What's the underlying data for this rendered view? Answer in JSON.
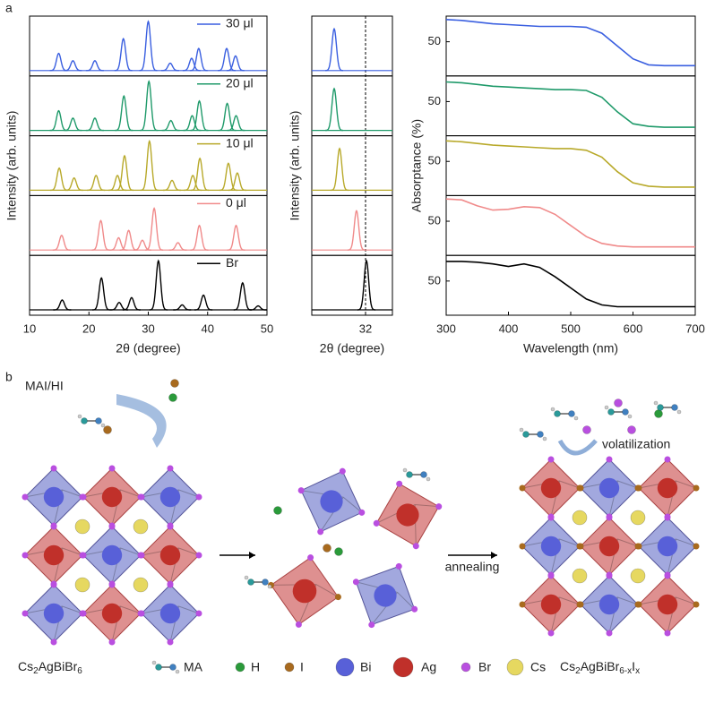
{
  "panel_labels": [
    "a",
    "b"
  ],
  "chart_data": [
    {
      "type": "xrd",
      "ylabel": "Intensity (arb. units)",
      "xlabel": "2θ (degree)",
      "xlim": [
        10,
        50
      ],
      "xticks": [
        10,
        20,
        30,
        40,
        50
      ],
      "series": [
        {
          "name": "30 μl",
          "color": "#3a5fe0",
          "x": [
            14.9,
            17.3,
            21.0,
            25.8,
            30.0,
            33.7,
            37.3,
            38.5,
            43.2,
            44.7
          ],
          "values": [
            0.35,
            0.2,
            0.2,
            0.65,
            1.0,
            0.15,
            0.25,
            0.45,
            0.45,
            0.3
          ]
        },
        {
          "name": "20 μl",
          "color": "#1f9a6a",
          "x": [
            14.9,
            17.3,
            21.0,
            25.9,
            30.1,
            33.8,
            37.4,
            38.6,
            43.3,
            44.8
          ],
          "values": [
            0.4,
            0.25,
            0.25,
            0.7,
            1.0,
            0.2,
            0.3,
            0.6,
            0.55,
            0.3
          ]
        },
        {
          "name": "10 μl",
          "color": "#b8a92a",
          "x": [
            15.0,
            17.5,
            21.2,
            24.8,
            26.0,
            30.2,
            34.0,
            37.5,
            38.7,
            43.5,
            45.0
          ],
          "values": [
            0.45,
            0.25,
            0.3,
            0.3,
            0.7,
            1.0,
            0.2,
            0.3,
            0.65,
            0.55,
            0.35
          ]
        },
        {
          "name": "0 μl",
          "color": "#f08a8a",
          "x": [
            15.4,
            22.0,
            25.0,
            26.7,
            29.0,
            31.0,
            35.0,
            38.6,
            44.8
          ],
          "values": [
            0.3,
            0.6,
            0.25,
            0.4,
            0.2,
            0.85,
            0.15,
            0.5,
            0.5
          ]
        },
        {
          "name": "Br",
          "color": "#000000",
          "x": [
            15.5,
            22.1,
            25.1,
            27.2,
            31.7,
            35.7,
            39.3,
            45.9,
            48.5
          ],
          "values": [
            0.2,
            0.65,
            0.15,
            0.25,
            1.0,
            0.1,
            0.3,
            0.55,
            0.08
          ]
        }
      ]
    },
    {
      "type": "xrd",
      "ylabel": "Intensity (arb. units)",
      "xlabel": "2θ (degree)",
      "xlim": [
        29.5,
        33.25
      ],
      "xticks": [
        32
      ],
      "vline": 32,
      "series": [
        {
          "color": "#3a5fe0",
          "x": [
            30.54
          ],
          "values": [
            0.85
          ]
        },
        {
          "color": "#1f9a6a",
          "x": [
            30.54
          ],
          "values": [
            0.85
          ]
        },
        {
          "color": "#b8a92a",
          "x": [
            30.79
          ],
          "values": [
            0.85
          ]
        },
        {
          "color": "#f08a8a",
          "x": [
            31.58
          ],
          "values": [
            0.8
          ]
        },
        {
          "color": "#000000",
          "x": [
            32.04
          ],
          "values": [
            1.0
          ]
        }
      ]
    },
    {
      "type": "line",
      "ylabel": "Absorptance (%)",
      "xlabel": "Wavelength (nm)",
      "xlim": [
        300,
        700
      ],
      "xticks": [
        300,
        400,
        500,
        600,
        700
      ],
      "ylim": [
        10,
        80
      ],
      "yticks": [
        50
      ],
      "x": [
        300,
        325,
        350,
        375,
        400,
        425,
        450,
        475,
        500,
        525,
        550,
        575,
        600,
        625,
        650,
        675,
        700
      ],
      "series": [
        {
          "color": "#3a5fe0",
          "values": [
            76,
            75,
            73,
            71,
            70,
            69,
            68,
            68,
            68,
            67,
            60,
            45,
            30,
            23,
            22,
            22,
            22
          ]
        },
        {
          "color": "#1f9a6a",
          "values": [
            73,
            72,
            70,
            68,
            67,
            66,
            65,
            64,
            64,
            63,
            55,
            38,
            24,
            21,
            20,
            20,
            20
          ]
        },
        {
          "color": "#b8a92a",
          "values": [
            74,
            73,
            71,
            69,
            68,
            67,
            66,
            65,
            65,
            63,
            55,
            38,
            25,
            21,
            20,
            20,
            20
          ]
        },
        {
          "color": "#f08a8a",
          "values": [
            76,
            75,
            68,
            63,
            64,
            67,
            66,
            58,
            45,
            32,
            24,
            21,
            20,
            20,
            20,
            20,
            20
          ]
        },
        {
          "color": "#000000",
          "values": [
            73,
            73,
            72,
            70,
            67,
            70,
            66,
            55,
            42,
            29,
            22,
            20,
            20,
            20,
            20,
            20,
            20
          ]
        }
      ]
    }
  ],
  "diagram": {
    "reagent": "MAI/HI",
    "process": "volatilization",
    "step": "annealing",
    "start_formula": [
      "Cs",
      "2",
      "AgBiBr",
      "6"
    ],
    "end_formula": [
      "Cs",
      "2",
      "AgBiBr",
      "6-x",
      "I",
      "x"
    ],
    "legend": [
      {
        "label": "MA"
      },
      {
        "label": "H"
      },
      {
        "label": "I"
      },
      {
        "label": "Bi"
      },
      {
        "label": "Ag"
      },
      {
        "label": "Br"
      },
      {
        "label": "Cs"
      }
    ]
  }
}
